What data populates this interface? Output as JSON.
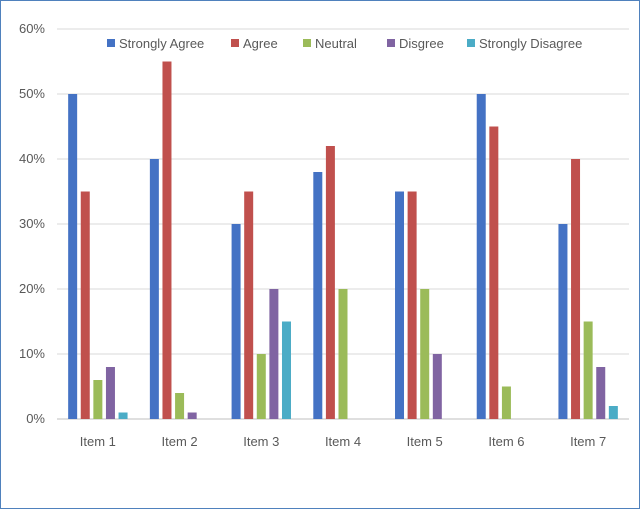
{
  "chart_data": {
    "type": "bar",
    "categories": [
      "Item 1",
      "Item 2",
      "Item 3",
      "Item 4",
      "Item 5",
      "Item 6",
      "Item 7"
    ],
    "series": [
      {
        "name": "Strongly Agree",
        "color": "#4472c4",
        "values": [
          50,
          40,
          30,
          38,
          35,
          50,
          30
        ]
      },
      {
        "name": "Agree",
        "color": "#c0504d",
        "values": [
          35,
          55,
          35,
          42,
          35,
          45,
          40
        ]
      },
      {
        "name": "Neutral",
        "color": "#9bbb59",
        "values": [
          6,
          4,
          10,
          20,
          20,
          5,
          15
        ]
      },
      {
        "name": "Disgree",
        "color": "#8064a2",
        "values": [
          8,
          1,
          20,
          0,
          10,
          0,
          8
        ]
      },
      {
        "name": "Strongly Disagree",
        "color": "#4bacc6",
        "values": [
          1,
          0,
          15,
          0,
          0,
          0,
          2
        ]
      }
    ],
    "y_ticks": [
      "0%",
      "10%",
      "20%",
      "30%",
      "40%",
      "50%",
      "60%"
    ],
    "ylim": [
      0,
      60
    ],
    "grid": true,
    "legend_position": "top"
  }
}
